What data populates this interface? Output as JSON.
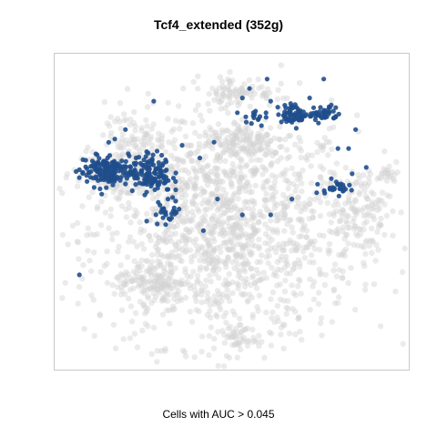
{
  "chart_data": {
    "type": "scatter",
    "title": "Tcf4_extended (352g)",
    "xlabel": "Cells with AUC > 0.045",
    "ylabel": "",
    "grid": false,
    "legend": "none",
    "colors": {
      "highlight": "#1f4e8c",
      "background": "#d3d3d3",
      "frame": "#c8c8c8"
    },
    "series": [
      {
        "role": "background",
        "clusters": [
          {
            "cx": 0.48,
            "cy": 0.44,
            "rx": 0.37,
            "ry": 0.36,
            "n": 1400
          },
          {
            "cx": 0.2,
            "cy": 0.62,
            "rx": 0.14,
            "ry": 0.08,
            "n": 160
          },
          {
            "cx": 0.27,
            "cy": 0.28,
            "rx": 0.1,
            "ry": 0.06,
            "n": 120
          },
          {
            "cx": 0.54,
            "cy": 0.72,
            "rx": 0.13,
            "ry": 0.07,
            "n": 140
          },
          {
            "cx": 0.52,
            "cy": 0.88,
            "rx": 0.1,
            "ry": 0.05,
            "n": 80
          },
          {
            "cx": 0.86,
            "cy": 0.5,
            "rx": 0.09,
            "ry": 0.14,
            "n": 120
          },
          {
            "cx": 0.94,
            "cy": 0.62,
            "rx": 0.03,
            "ry": 0.03,
            "n": 20
          },
          {
            "cx": 0.51,
            "cy": 0.1,
            "rx": 0.06,
            "ry": 0.04,
            "n": 40
          },
          {
            "cx": 0.22,
            "cy": 0.74,
            "rx": 0.08,
            "ry": 0.06,
            "n": 60
          }
        ]
      },
      {
        "role": "highlight",
        "clusters": [
          {
            "cx": 0.14,
            "cy": 0.63,
            "rx": 0.07,
            "ry": 0.05,
            "n": 150
          },
          {
            "cx": 0.27,
            "cy": 0.62,
            "rx": 0.06,
            "ry": 0.06,
            "n": 130
          },
          {
            "cx": 0.32,
            "cy": 0.5,
            "rx": 0.04,
            "ry": 0.04,
            "n": 25
          },
          {
            "cx": 0.68,
            "cy": 0.81,
            "rx": 0.05,
            "ry": 0.03,
            "n": 60
          },
          {
            "cx": 0.76,
            "cy": 0.81,
            "rx": 0.04,
            "ry": 0.03,
            "n": 40
          },
          {
            "cx": 0.79,
            "cy": 0.58,
            "rx": 0.04,
            "ry": 0.02,
            "n": 25
          },
          {
            "cx": 0.56,
            "cy": 0.8,
            "rx": 0.03,
            "ry": 0.03,
            "n": 15
          }
        ],
        "points": [
          [
            0.07,
            0.3
          ],
          [
            0.26,
            0.47
          ],
          [
            0.17,
            0.73
          ],
          [
            0.2,
            0.76
          ],
          [
            0.28,
            0.85
          ],
          [
            0.36,
            0.71
          ],
          [
            0.41,
            0.67
          ],
          [
            0.45,
            0.72
          ],
          [
            0.55,
            0.89
          ],
          [
            0.53,
            0.86
          ],
          [
            0.46,
            0.54
          ],
          [
            0.6,
            0.92
          ],
          [
            0.61,
            0.85
          ],
          [
            0.72,
            0.86
          ],
          [
            0.67,
            0.54
          ],
          [
            0.61,
            0.49
          ],
          [
            0.76,
            0.92
          ],
          [
            0.8,
            0.7
          ],
          [
            0.83,
            0.7
          ],
          [
            0.84,
            0.62
          ],
          [
            0.85,
            0.76
          ],
          [
            0.88,
            0.64
          ],
          [
            0.74,
            0.56
          ],
          [
            0.42,
            0.44
          ],
          [
            0.33,
            0.48
          ],
          [
            0.32,
            0.54
          ],
          [
            0.26,
            0.69
          ],
          [
            0.23,
            0.67
          ],
          [
            0.12,
            0.68
          ],
          [
            0.53,
            0.49
          ]
        ]
      }
    ]
  }
}
